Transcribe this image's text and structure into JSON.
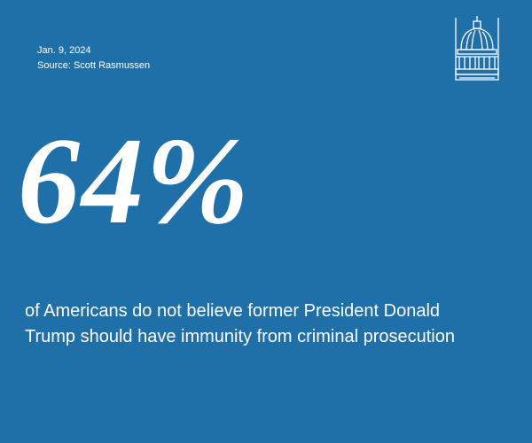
{
  "header": {
    "date": "Jan. 9, 2024",
    "source": "Source: Scott Rasmussen"
  },
  "stat": {
    "value": "64%",
    "description": "of Americans do not believe former President Donald Trump should have immunity from criminal prosecution"
  }
}
